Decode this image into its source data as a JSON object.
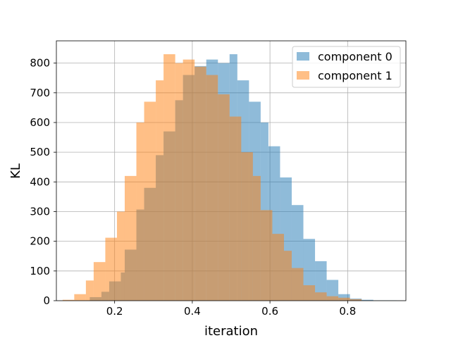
{
  "chart_data": {
    "type": "histogram",
    "xlabel": "iteration",
    "ylabel": "KL",
    "xlim": [
      0.05,
      0.95
    ],
    "ylim": [
      0,
      875
    ],
    "xticks": [
      0.2,
      0.4,
      0.6,
      0.8
    ],
    "xtick_labels": [
      "0.2",
      "0.4",
      "0.6",
      "0.8"
    ],
    "yticks": [
      0,
      100,
      200,
      300,
      400,
      500,
      600,
      700,
      800
    ],
    "ytick_labels": [
      "0",
      "100",
      "200",
      "300",
      "400",
      "500",
      "600",
      "700",
      "800"
    ],
    "grid": true,
    "legend_position": "upper-right",
    "series": [
      {
        "name": "component 0",
        "color": "#1f77b4",
        "alpha": 0.5,
        "bin_edges": [
          0.136,
          0.166,
          0.186,
          0.216,
          0.226,
          0.256,
          0.276,
          0.306,
          0.326,
          0.356,
          0.376,
          0.406,
          0.436,
          0.466,
          0.496,
          0.516,
          0.546,
          0.576,
          0.596,
          0.626,
          0.656,
          0.686,
          0.716,
          0.746,
          0.776,
          0.806,
          0.836,
          0.866,
          0.896,
          0.926
        ],
        "counts": [
          12,
          30,
          65,
          95,
          172,
          307,
          380,
          490,
          570,
          675,
          760,
          790,
          812,
          800,
          830,
          742,
          670,
          600,
          520,
          415,
          322,
          208,
          133,
          70,
          22,
          7,
          3,
          1,
          1
        ]
      },
      {
        "name": "component 1",
        "color": "#ff7f0e",
        "alpha": 0.5,
        "bin_edges": [
          0.066,
          0.096,
          0.126,
          0.146,
          0.176,
          0.206,
          0.226,
          0.256,
          0.276,
          0.306,
          0.326,
          0.356,
          0.376,
          0.406,
          0.436,
          0.466,
          0.496,
          0.526,
          0.556,
          0.576,
          0.606,
          0.636,
          0.656,
          0.686,
          0.716,
          0.746,
          0.776,
          0.806,
          0.836
        ],
        "counts": [
          3,
          22,
          68,
          130,
          212,
          300,
          420,
          600,
          670,
          742,
          830,
          800,
          812,
          788,
          760,
          695,
          620,
          500,
          420,
          305,
          225,
          168,
          110,
          52,
          28,
          15,
          10,
          5
        ]
      }
    ]
  }
}
